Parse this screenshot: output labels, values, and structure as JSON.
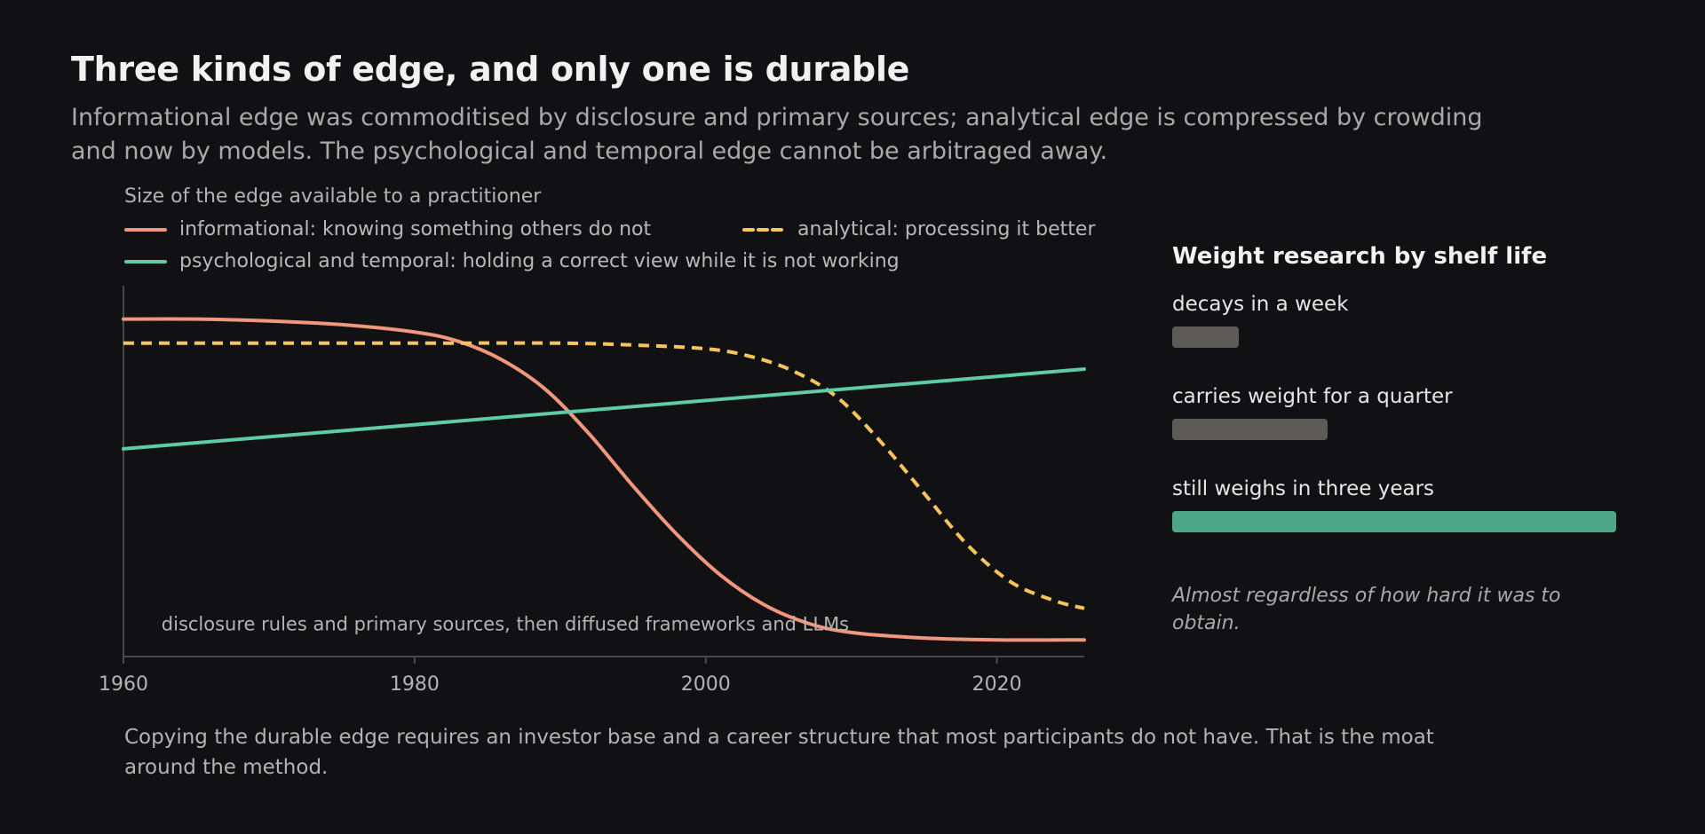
{
  "header": {
    "title": "Three kinds of edge, and only one is durable",
    "subtitle": "Informational edge was commoditised by disclosure and primary sources; analytical edge is compressed by crowding and now by models. The psychological and temporal edge cannot be arbitraged away."
  },
  "chart_data": {
    "type": "line",
    "title": "Size of the edge available to a practitioner",
    "xlabel": "",
    "ylabel": "",
    "xlim": [
      1960,
      2026
    ],
    "ylim": [
      0,
      1
    ],
    "x_ticks": [
      1960,
      1980,
      2000,
      2020
    ],
    "x_tick_labels": [
      "1960",
      "1980",
      "2000",
      "2020"
    ],
    "grid": false,
    "legend": "top",
    "series": [
      {
        "name": "informational: knowing something others do not",
        "color": "#f0977d",
        "dash": "solid",
        "x": [
          1960,
          1965,
          1970,
          1975,
          1980,
          1983,
          1986,
          1989,
          1992,
          1995,
          1998,
          2001,
          2004,
          2007,
          2010,
          2015,
          2020,
          2026
        ],
        "y": [
          0.91,
          0.91,
          0.905,
          0.895,
          0.875,
          0.85,
          0.8,
          0.72,
          0.6,
          0.46,
          0.33,
          0.22,
          0.14,
          0.09,
          0.065,
          0.05,
          0.045,
          0.045
        ]
      },
      {
        "name": "analytical: processing it better",
        "color": "#f7c65a",
        "dash": "dashed",
        "x": [
          1960,
          1970,
          1980,
          1990,
          1995,
          2000,
          2003,
          2006,
          2009,
          2012,
          2015,
          2018,
          2021,
          2024,
          2026
        ],
        "y": [
          0.845,
          0.845,
          0.845,
          0.845,
          0.84,
          0.83,
          0.81,
          0.77,
          0.7,
          0.58,
          0.44,
          0.3,
          0.2,
          0.15,
          0.13
        ]
      },
      {
        "name": "psychological and temporal: holding a correct view while it is not working",
        "color": "#5fcca5",
        "dash": "solid",
        "x": [
          1960,
          2026
        ],
        "y": [
          0.56,
          0.775
        ]
      }
    ],
    "annotations": [
      {
        "text": "disclosure rules and primary sources, then diffused frameworks and LLMs",
        "x": 1962,
        "y": 0.09
      }
    ]
  },
  "side": {
    "title": "Weight research by shelf life",
    "items": [
      {
        "label": "decays in a week",
        "weight": 0.15,
        "color": "#5d5b58"
      },
      {
        "label": "carries weight for a quarter",
        "weight": 0.35,
        "color": "#5d5b58"
      },
      {
        "label": "still weighs in three years",
        "weight": 1.0,
        "color": "#4ea688"
      }
    ],
    "note": "Almost regardless of how hard it was to obtain."
  },
  "footer": {
    "text": "Copying the durable edge requires an investor base and a career structure that most participants do not have. That is the moat around the method."
  }
}
